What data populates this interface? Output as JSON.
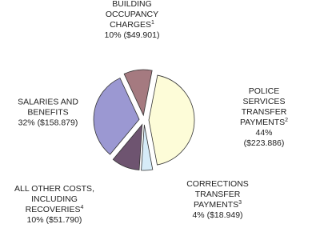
{
  "chart_data": {
    "type": "pie",
    "categories": [
      "POLICE SERVICES\nTRANSFER PAYMENTS",
      "CORRECTIONS TRANSFER\nPAYMENTS",
      "ALL OTHER COSTS,\nINCLUDING\nRECOVERIES",
      "SALARIES AND\nBENEFITS",
      "BUILDING\nOCCUPANCY\nCHARGES"
    ],
    "notes": [
      "2",
      "3",
      "4",
      null,
      "1"
    ],
    "values": [
      44,
      4,
      10,
      32,
      10
    ],
    "value_labels": [
      "44%",
      "4%",
      "10%",
      "32%",
      "10%"
    ],
    "amount_labels": [
      "($223.886)",
      "($18.949)",
      "($51.790)",
      "($158.879)",
      "($49.901)"
    ],
    "colors": [
      "#fdfcd8",
      "#d6ecf8",
      "#6e5470",
      "#9b98d2",
      "#a57a80"
    ]
  }
}
